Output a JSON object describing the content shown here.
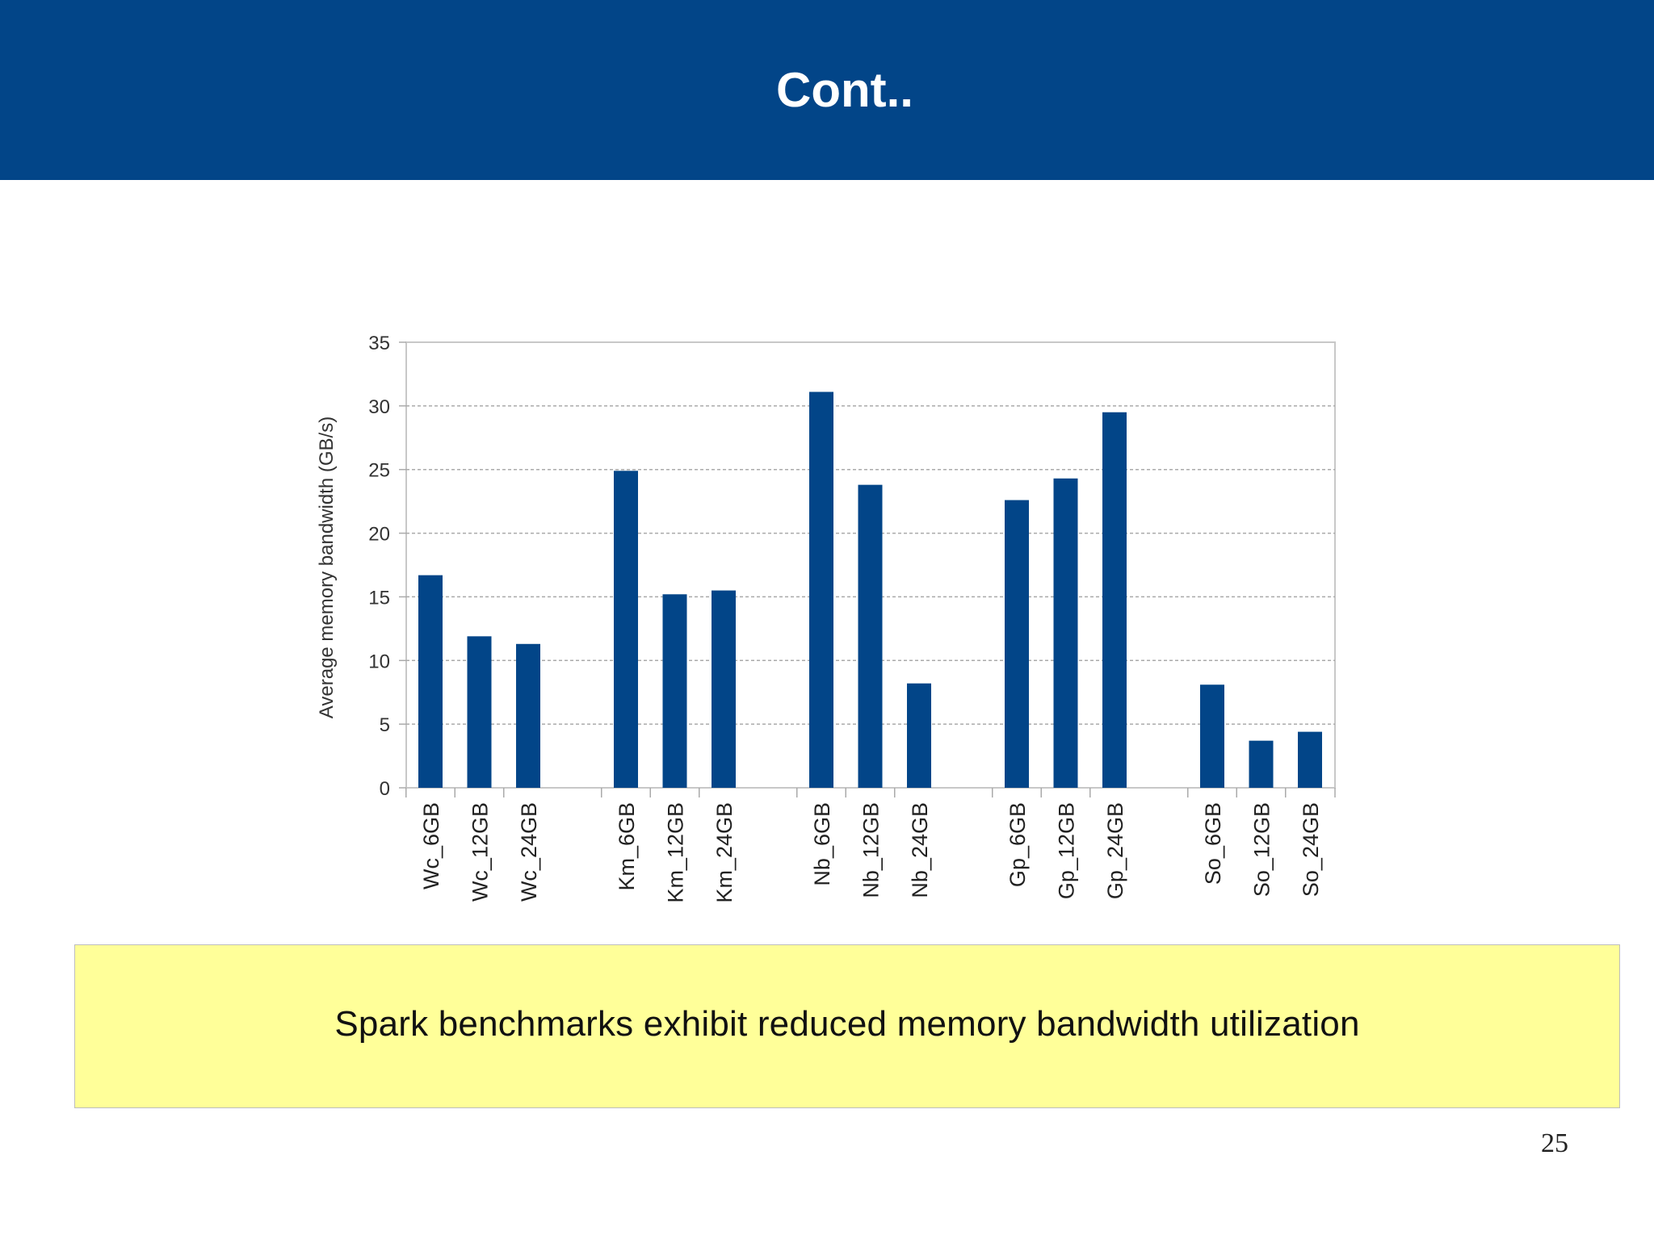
{
  "slide": {
    "title": "Cont..",
    "caption": "Spark benchmarks exhibit reduced memory bandwidth utilization",
    "page_number": "25"
  },
  "colors": {
    "header": "#024588",
    "bar": "#024588",
    "caption_bg": "#ffff99"
  },
  "chart_data": {
    "type": "bar",
    "title": "",
    "xlabel": "",
    "ylabel": "Average memory bandwidth (GB/s)",
    "ylim": [
      0,
      35
    ],
    "yticks": [
      0,
      5,
      10,
      15,
      20,
      25,
      30,
      35
    ],
    "grid": true,
    "legend": "none",
    "groups": [
      {
        "categories": [
          "Wc_6GB",
          "Wc_12GB",
          "Wc_24GB"
        ],
        "values": [
          16.7,
          11.9,
          11.3
        ]
      },
      {
        "categories": [
          "Km_6GB",
          "Km_12GB",
          "Km_24GB"
        ],
        "values": [
          24.9,
          15.2,
          15.5
        ]
      },
      {
        "categories": [
          "Nb_6GB",
          "Nb_12GB",
          "Nb_24GB"
        ],
        "values": [
          31.1,
          23.8,
          8.2
        ]
      },
      {
        "categories": [
          "Gp_6GB",
          "Gp_12GB",
          "Gp_24GB"
        ],
        "values": [
          22.6,
          24.3,
          29.5
        ]
      },
      {
        "categories": [
          "So_6GB",
          "So_12GB",
          "So_24GB"
        ],
        "values": [
          8.1,
          3.7,
          4.4
        ]
      }
    ]
  }
}
